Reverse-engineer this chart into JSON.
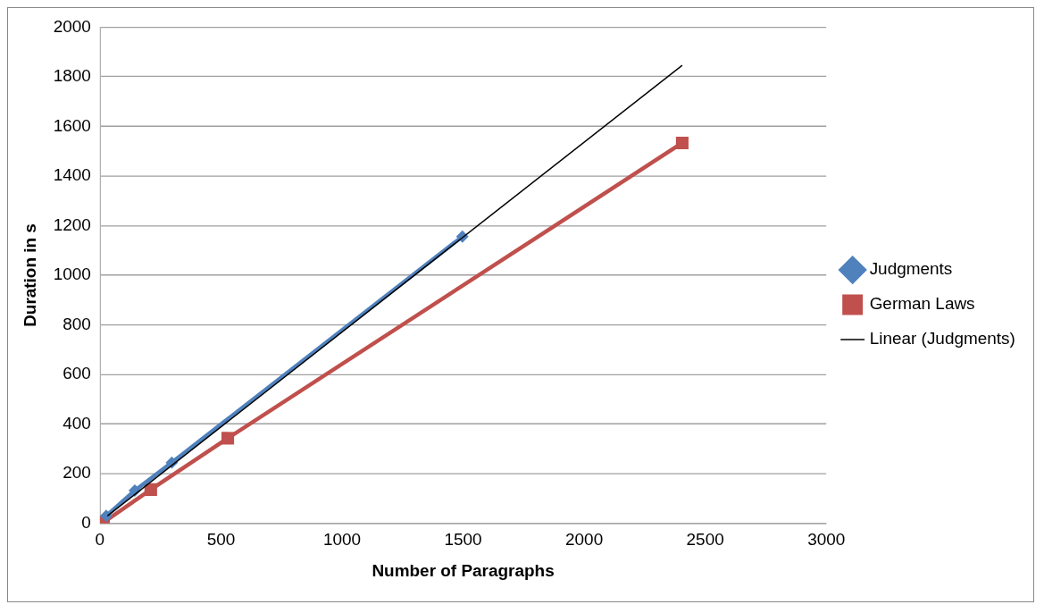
{
  "chart_data": {
    "type": "line",
    "xlabel": "Number of Paragraphs",
    "ylabel": "Duration in s",
    "xlim": [
      0,
      3000
    ],
    "xticks": [
      0,
      500,
      1000,
      1500,
      2000,
      2500,
      3000
    ],
    "ylim": [
      0,
      2000
    ],
    "yticks": [
      0,
      200,
      400,
      600,
      800,
      1000,
      1200,
      1400,
      1600,
      1800,
      2000
    ],
    "grid": "y",
    "legend": "right",
    "series": [
      {
        "name": "Judgments",
        "color": "#4f81bd",
        "marker": "diamond",
        "x": [
          26,
          144,
          297,
          1497
        ],
        "values": [
          30,
          132,
          245,
          1156
        ]
      },
      {
        "name": "German Laws",
        "color": "#c0504d",
        "marker": "square",
        "x": [
          15,
          210,
          528,
          2405
        ],
        "values": [
          4,
          136,
          343,
          1533
        ]
      },
      {
        "name": "Linear (Judgments)",
        "color": "#000000",
        "marker": "none",
        "x": [
          31,
          2405
        ],
        "values": [
          30,
          1846
        ]
      }
    ]
  }
}
